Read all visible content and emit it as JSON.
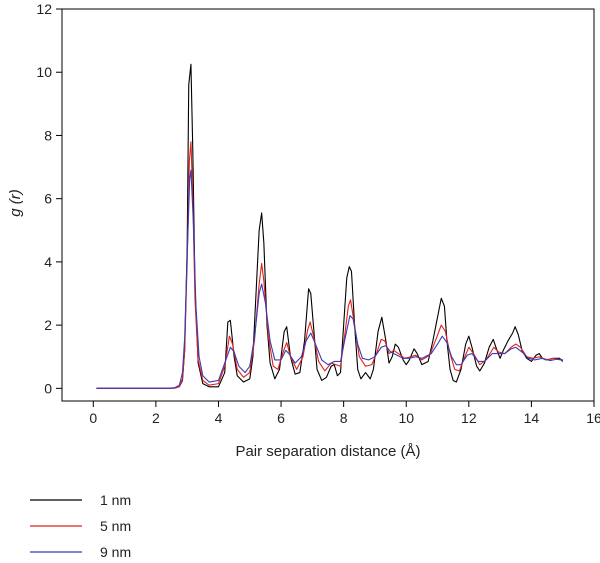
{
  "chart_data": {
    "type": "line",
    "title": "",
    "xlabel": "Pair separation distance (Å)",
    "ylabel": "g (r)",
    "xlim": [
      -1,
      16
    ],
    "ylim": [
      -0.4,
      12
    ],
    "xticks": [
      "0",
      "2",
      "4",
      "6",
      "8",
      "10",
      "12",
      "14",
      "16"
    ],
    "yticks": [
      "0",
      "2",
      "4",
      "6",
      "8",
      "10",
      "12"
    ],
    "grid": false,
    "legend_position": "bottom-left",
    "series": [
      {
        "name": "1 nm",
        "color": "#000000",
        "points": [
          [
            0.1,
            0
          ],
          [
            2.4,
            0
          ],
          [
            2.6,
            0.01
          ],
          [
            2.75,
            0.05
          ],
          [
            2.85,
            0.25
          ],
          [
            2.92,
            1.2
          ],
          [
            3.0,
            4.5
          ],
          [
            3.05,
            9.6
          ],
          [
            3.12,
            10.25
          ],
          [
            3.18,
            7.5
          ],
          [
            3.25,
            3.2
          ],
          [
            3.35,
            0.8
          ],
          [
            3.5,
            0.15
          ],
          [
            3.7,
            0.05
          ],
          [
            4.0,
            0.05
          ],
          [
            4.2,
            0.5
          ],
          [
            4.3,
            2.1
          ],
          [
            4.38,
            2.15
          ],
          [
            4.5,
            1.0
          ],
          [
            4.6,
            0.4
          ],
          [
            4.8,
            0.2
          ],
          [
            5.0,
            0.3
          ],
          [
            5.1,
            1.0
          ],
          [
            5.2,
            3.0
          ],
          [
            5.3,
            5.0
          ],
          [
            5.38,
            5.55
          ],
          [
            5.45,
            4.6
          ],
          [
            5.55,
            2.0
          ],
          [
            5.65,
            0.8
          ],
          [
            5.8,
            0.3
          ],
          [
            5.95,
            0.6
          ],
          [
            6.1,
            1.8
          ],
          [
            6.18,
            1.95
          ],
          [
            6.3,
            1.0
          ],
          [
            6.45,
            0.45
          ],
          [
            6.6,
            0.5
          ],
          [
            6.75,
            1.5
          ],
          [
            6.88,
            3.15
          ],
          [
            6.95,
            3.0
          ],
          [
            7.05,
            1.8
          ],
          [
            7.15,
            0.6
          ],
          [
            7.3,
            0.25
          ],
          [
            7.45,
            0.35
          ],
          [
            7.6,
            0.7
          ],
          [
            7.7,
            0.75
          ],
          [
            7.8,
            0.4
          ],
          [
            7.9,
            0.5
          ],
          [
            8.0,
            2.0
          ],
          [
            8.1,
            3.5
          ],
          [
            8.18,
            3.85
          ],
          [
            8.25,
            3.7
          ],
          [
            8.35,
            2.0
          ],
          [
            8.45,
            0.6
          ],
          [
            8.55,
            0.3
          ],
          [
            8.7,
            0.5
          ],
          [
            8.85,
            0.3
          ],
          [
            8.95,
            0.6
          ],
          [
            9.1,
            1.8
          ],
          [
            9.22,
            2.25
          ],
          [
            9.35,
            1.5
          ],
          [
            9.45,
            0.8
          ],
          [
            9.55,
            1.0
          ],
          [
            9.65,
            1.4
          ],
          [
            9.75,
            1.3
          ],
          [
            9.9,
            0.9
          ],
          [
            10.0,
            0.75
          ],
          [
            10.1,
            0.9
          ],
          [
            10.25,
            1.25
          ],
          [
            10.35,
            1.1
          ],
          [
            10.5,
            0.75
          ],
          [
            10.7,
            0.85
          ],
          [
            10.85,
            1.5
          ],
          [
            10.95,
            2.0
          ],
          [
            11.05,
            2.5
          ],
          [
            11.12,
            2.85
          ],
          [
            11.22,
            2.6
          ],
          [
            11.3,
            1.5
          ],
          [
            11.4,
            0.6
          ],
          [
            11.5,
            0.25
          ],
          [
            11.6,
            0.2
          ],
          [
            11.75,
            0.6
          ],
          [
            11.9,
            1.4
          ],
          [
            12.0,
            1.65
          ],
          [
            12.1,
            1.3
          ],
          [
            12.25,
            0.7
          ],
          [
            12.35,
            0.55
          ],
          [
            12.5,
            0.8
          ],
          [
            12.65,
            1.3
          ],
          [
            12.78,
            1.55
          ],
          [
            12.9,
            1.2
          ],
          [
            13.0,
            0.95
          ],
          [
            13.1,
            1.2
          ],
          [
            13.25,
            1.5
          ],
          [
            13.4,
            1.75
          ],
          [
            13.48,
            1.95
          ],
          [
            13.58,
            1.7
          ],
          [
            13.7,
            1.2
          ],
          [
            13.85,
            0.95
          ],
          [
            14.0,
            0.85
          ],
          [
            14.15,
            1.05
          ],
          [
            14.25,
            1.1
          ],
          [
            14.35,
            0.95
          ],
          [
            14.5,
            0.9
          ],
          [
            14.7,
            0.95
          ],
          [
            14.9,
            0.95
          ],
          [
            15.0,
            0.85
          ]
        ]
      },
      {
        "name": "5 nm",
        "color": "#e0201b",
        "points": [
          [
            0.1,
            0
          ],
          [
            2.4,
            0
          ],
          [
            2.6,
            0.01
          ],
          [
            2.75,
            0.05
          ],
          [
            2.85,
            0.3
          ],
          [
            2.92,
            1.2
          ],
          [
            3.0,
            4.0
          ],
          [
            3.07,
            7.2
          ],
          [
            3.12,
            7.8
          ],
          [
            3.18,
            6.0
          ],
          [
            3.25,
            2.8
          ],
          [
            3.35,
            0.9
          ],
          [
            3.5,
            0.25
          ],
          [
            3.7,
            0.1
          ],
          [
            4.0,
            0.15
          ],
          [
            4.2,
            0.7
          ],
          [
            4.35,
            1.65
          ],
          [
            4.45,
            1.4
          ],
          [
            4.6,
            0.6
          ],
          [
            4.8,
            0.35
          ],
          [
            5.0,
            0.5
          ],
          [
            5.15,
            1.5
          ],
          [
            5.3,
            3.3
          ],
          [
            5.38,
            3.95
          ],
          [
            5.45,
            3.4
          ],
          [
            5.6,
            1.6
          ],
          [
            5.75,
            0.7
          ],
          [
            5.9,
            0.6
          ],
          [
            6.05,
            1.1
          ],
          [
            6.18,
            1.45
          ],
          [
            6.3,
            1.0
          ],
          [
            6.5,
            0.6
          ],
          [
            6.7,
            1.0
          ],
          [
            6.85,
            1.85
          ],
          [
            6.93,
            2.1
          ],
          [
            7.05,
            1.6
          ],
          [
            7.2,
            0.85
          ],
          [
            7.4,
            0.55
          ],
          [
            7.6,
            0.8
          ],
          [
            7.75,
            0.75
          ],
          [
            7.9,
            0.7
          ],
          [
            8.05,
            1.8
          ],
          [
            8.15,
            2.6
          ],
          [
            8.22,
            2.8
          ],
          [
            8.35,
            2.0
          ],
          [
            8.5,
            1.0
          ],
          [
            8.7,
            0.7
          ],
          [
            8.9,
            0.75
          ],
          [
            9.05,
            1.1
          ],
          [
            9.2,
            1.55
          ],
          [
            9.32,
            1.5
          ],
          [
            9.45,
            1.1
          ],
          [
            9.6,
            1.2
          ],
          [
            9.75,
            1.1
          ],
          [
            9.95,
            0.95
          ],
          [
            10.15,
            1.0
          ],
          [
            10.3,
            1.05
          ],
          [
            10.5,
            0.9
          ],
          [
            10.75,
            1.05
          ],
          [
            10.95,
            1.55
          ],
          [
            11.12,
            2.0
          ],
          [
            11.25,
            1.8
          ],
          [
            11.4,
            1.1
          ],
          [
            11.55,
            0.6
          ],
          [
            11.7,
            0.55
          ],
          [
            11.85,
            0.95
          ],
          [
            12.0,
            1.3
          ],
          [
            12.15,
            1.1
          ],
          [
            12.35,
            0.75
          ],
          [
            12.55,
            0.9
          ],
          [
            12.8,
            1.3
          ],
          [
            12.95,
            1.15
          ],
          [
            13.15,
            1.1
          ],
          [
            13.35,
            1.3
          ],
          [
            13.5,
            1.4
          ],
          [
            13.65,
            1.3
          ],
          [
            13.85,
            1.0
          ],
          [
            14.05,
            0.95
          ],
          [
            14.25,
            1.0
          ],
          [
            14.45,
            0.9
          ],
          [
            14.7,
            0.95
          ],
          [
            15.0,
            0.9
          ]
        ]
      },
      {
        "name": "9 nm",
        "color": "#3b3bb5",
        "points": [
          [
            0.1,
            0
          ],
          [
            2.4,
            0
          ],
          [
            2.6,
            0.02
          ],
          [
            2.75,
            0.1
          ],
          [
            2.85,
            0.5
          ],
          [
            2.92,
            1.6
          ],
          [
            3.0,
            4.2
          ],
          [
            3.08,
            6.6
          ],
          [
            3.12,
            6.9
          ],
          [
            3.2,
            5.2
          ],
          [
            3.28,
            2.6
          ],
          [
            3.38,
            1.0
          ],
          [
            3.5,
            0.4
          ],
          [
            3.7,
            0.2
          ],
          [
            4.0,
            0.25
          ],
          [
            4.2,
            0.8
          ],
          [
            4.38,
            1.3
          ],
          [
            4.5,
            1.15
          ],
          [
            4.65,
            0.7
          ],
          [
            4.85,
            0.5
          ],
          [
            5.0,
            0.7
          ],
          [
            5.15,
            1.6
          ],
          [
            5.3,
            3.0
          ],
          [
            5.38,
            3.3
          ],
          [
            5.5,
            2.7
          ],
          [
            5.65,
            1.5
          ],
          [
            5.8,
            0.9
          ],
          [
            6.0,
            0.9
          ],
          [
            6.15,
            1.2
          ],
          [
            6.25,
            1.1
          ],
          [
            6.45,
            0.8
          ],
          [
            6.65,
            1.0
          ],
          [
            6.8,
            1.5
          ],
          [
            6.95,
            1.75
          ],
          [
            7.1,
            1.4
          ],
          [
            7.3,
            0.9
          ],
          [
            7.5,
            0.75
          ],
          [
            7.7,
            0.85
          ],
          [
            7.9,
            0.85
          ],
          [
            8.05,
            1.6
          ],
          [
            8.2,
            2.3
          ],
          [
            8.3,
            2.2
          ],
          [
            8.45,
            1.4
          ],
          [
            8.6,
            0.95
          ],
          [
            8.8,
            0.9
          ],
          [
            9.0,
            1.0
          ],
          [
            9.2,
            1.3
          ],
          [
            9.35,
            1.35
          ],
          [
            9.5,
            1.15
          ],
          [
            9.7,
            1.05
          ],
          [
            9.9,
            0.95
          ],
          [
            10.1,
            0.95
          ],
          [
            10.3,
            1.0
          ],
          [
            10.5,
            0.95
          ],
          [
            10.8,
            1.1
          ],
          [
            11.0,
            1.4
          ],
          [
            11.15,
            1.65
          ],
          [
            11.3,
            1.45
          ],
          [
            11.45,
            1.0
          ],
          [
            11.6,
            0.75
          ],
          [
            11.75,
            0.75
          ],
          [
            11.95,
            1.05
          ],
          [
            12.1,
            1.1
          ],
          [
            12.3,
            0.85
          ],
          [
            12.5,
            0.85
          ],
          [
            12.75,
            1.1
          ],
          [
            12.95,
            1.1
          ],
          [
            13.15,
            1.1
          ],
          [
            13.35,
            1.25
          ],
          [
            13.5,
            1.3
          ],
          [
            13.7,
            1.15
          ],
          [
            13.9,
            0.95
          ],
          [
            14.1,
            0.9
          ],
          [
            14.35,
            0.95
          ],
          [
            14.6,
            0.88
          ],
          [
            14.8,
            0.92
          ],
          [
            15.0,
            0.9
          ]
        ]
      }
    ]
  }
}
